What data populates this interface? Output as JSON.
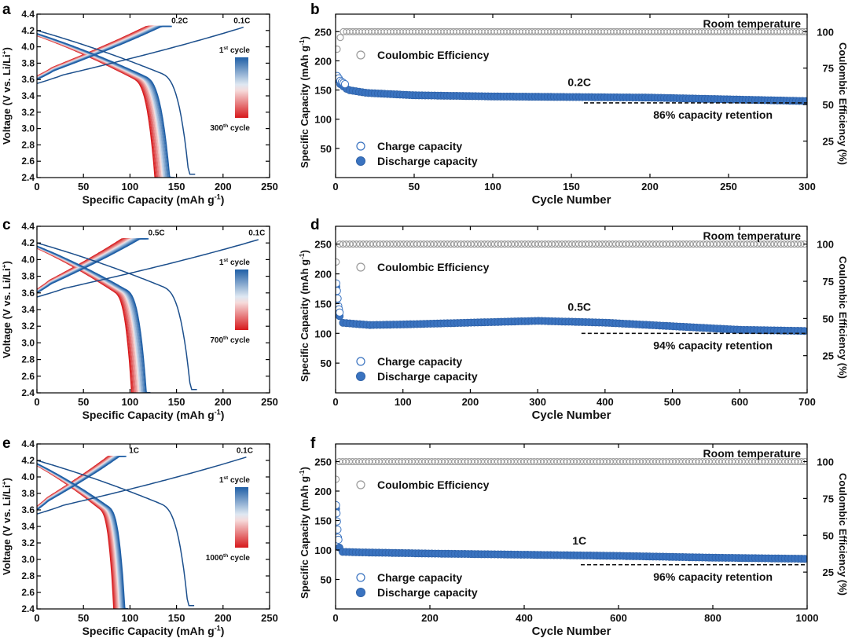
{
  "chart_data": [
    {
      "panel": "a",
      "type": "line",
      "xlabel": "Specific Capacity (mAh g",
      "xlabel_sup": "-1",
      "xlabel_end": ")",
      "ylabel": "Voltage (V vs. Li/Li",
      "ylabel_sup": "+",
      "ylabel_end": ")",
      "xlim": [
        0,
        250
      ],
      "ylim": [
        2.4,
        4.4
      ],
      "xticks": [
        "0",
        "50",
        "100",
        "150",
        "200",
        "250"
      ],
      "yticks": [
        "2.4",
        "2.6",
        "2.8",
        "3.0",
        "3.2",
        "3.4",
        "3.6",
        "3.8",
        "4.0",
        "4.2",
        "4.4"
      ],
      "formation_rate_label": "0.1C",
      "cycling_rate_label": "0.2C",
      "formation_charge_end": 222,
      "formation_discharge_end": 170,
      "first_charge_end": 145,
      "last_charge_end": 135,
      "first_discharge_end": 148,
      "last_discharge_end": 132,
      "legend_top": "1",
      "legend_top_sup": "st",
      "legend_top_end": " cycle",
      "legend_bottom": "300",
      "legend_bottom_sup": "th",
      "legend_bottom_end": " cycle"
    },
    {
      "panel": "b",
      "type": "scatter",
      "xlabel": "Cycle Number",
      "ylabel": "Specific Capacity (mAh g",
      "ylabel_sup": "-1",
      "ylabel_end": ")",
      "y2label": "Coulombic Efficiency (%)",
      "xlim": [
        0,
        300
      ],
      "ylim": [
        0,
        280
      ],
      "y2lim": [
        0,
        112
      ],
      "xticks": [
        "0",
        "50",
        "100",
        "150",
        "200",
        "250",
        "300"
      ],
      "yticks": [
        "50",
        "100",
        "150",
        "200",
        "250"
      ],
      "y2ticks": [
        "25",
        "50",
        "75",
        "100"
      ],
      "xtick_values": [
        0,
        50,
        100,
        150,
        200,
        250,
        300
      ],
      "ytick_values": [
        50,
        100,
        150,
        200,
        250
      ],
      "y2tick_values": [
        25,
        50,
        75,
        100
      ],
      "rate_label": "0.2C",
      "retention_label": "86% capacity retention",
      "temperature_label": "Room temperature",
      "legend": [
        "Coulombic Efficiency",
        "Charge capacity",
        "Discharge capacity"
      ],
      "capacity_profile": [
        [
          1,
          168
        ],
        [
          3,
          160
        ],
        [
          8,
          150
        ],
        [
          20,
          145
        ],
        [
          50,
          141
        ],
        [
          100,
          139
        ],
        [
          150,
          138
        ],
        [
          200,
          137
        ],
        [
          250,
          134
        ],
        [
          300,
          131
        ]
      ],
      "ce_percent": 100,
      "retention_line_x": [
        158,
        300
      ],
      "retention_line_y": 128
    },
    {
      "panel": "c",
      "type": "line",
      "xlabel": "Specific Capacity (mAh g",
      "xlabel_sup": "-1",
      "xlabel_end": ")",
      "ylabel": "Voltage (V vs. Li/Li",
      "ylabel_sup": "+",
      "ylabel_end": ")",
      "xlim": [
        0,
        250
      ],
      "ylim": [
        2.4,
        4.4
      ],
      "xticks": [
        "0",
        "50",
        "100",
        "150",
        "200",
        "250"
      ],
      "yticks": [
        "2.4",
        "2.6",
        "2.8",
        "3.0",
        "3.2",
        "3.4",
        "3.6",
        "3.8",
        "4.0",
        "4.2",
        "4.4"
      ],
      "formation_rate_label": "0.1C",
      "cycling_rate_label": "0.5C",
      "formation_charge_end": 238,
      "formation_discharge_end": 172,
      "first_charge_end": 120,
      "last_charge_end": 105,
      "first_discharge_end": 122,
      "last_discharge_end": 106,
      "legend_top": "1",
      "legend_top_sup": "st",
      "legend_top_end": " cycle",
      "legend_bottom": "700",
      "legend_bottom_sup": "th",
      "legend_bottom_end": " cycle"
    },
    {
      "panel": "d",
      "type": "scatter",
      "xlabel": "Cycle Number",
      "ylabel": "Specific Capacity (mAh g",
      "ylabel_sup": "-1",
      "ylabel_end": ")",
      "y2label": "Coulombic Efficiency (%)",
      "xlim": [
        0,
        700
      ],
      "ylim": [
        0,
        280
      ],
      "y2lim": [
        0,
        112
      ],
      "xticks": [
        "0",
        "100",
        "200",
        "300",
        "400",
        "500",
        "600",
        "700"
      ],
      "yticks": [
        "50",
        "100",
        "150",
        "200",
        "250"
      ],
      "y2ticks": [
        "25",
        "50",
        "75",
        "100"
      ],
      "xtick_values": [
        0,
        100,
        200,
        300,
        400,
        500,
        600,
        700
      ],
      "ytick_values": [
        50,
        100,
        150,
        200,
        250
      ],
      "y2tick_values": [
        25,
        50,
        75,
        100
      ],
      "rate_label": "0.5C",
      "retention_label": "94% capacity retention",
      "temperature_label": "Room temperature",
      "legend": [
        "Coulombic Efficiency",
        "Charge capacity",
        "Discharge capacity"
      ],
      "capacity_profile": [
        [
          1,
          178
        ],
        [
          4,
          140
        ],
        [
          8,
          118
        ],
        [
          50,
          114
        ],
        [
          100,
          115
        ],
        [
          200,
          118
        ],
        [
          300,
          121
        ],
        [
          400,
          118
        ],
        [
          500,
          112
        ],
        [
          600,
          106
        ],
        [
          700,
          104
        ]
      ],
      "ce_percent": 100,
      "retention_line_x": [
        365,
        700
      ],
      "retention_line_y": 100
    },
    {
      "panel": "e",
      "type": "line",
      "xlabel": "Specific Capacity (mAh g",
      "xlabel_sup": "-1",
      "xlabel_end": ")",
      "ylabel": "Voltage (V vs. Li/Li",
      "ylabel_sup": "+",
      "ylabel_end": ")",
      "xlim": [
        0,
        250
      ],
      "ylim": [
        2.4,
        4.4
      ],
      "xticks": [
        "0",
        "50",
        "100",
        "150",
        "200",
        "250"
      ],
      "yticks": [
        "2.4",
        "2.6",
        "2.8",
        "3.0",
        "3.2",
        "3.4",
        "3.6",
        "3.8",
        "4.0",
        "4.2",
        "4.4"
      ],
      "formation_rate_label": "0.1C",
      "cycling_rate_label": "1C",
      "formation_charge_end": 225,
      "formation_discharge_end": 169,
      "first_charge_end": 96,
      "last_charge_end": 88,
      "first_discharge_end": 98,
      "last_discharge_end": 86,
      "legend_top": "1",
      "legend_top_sup": "st",
      "legend_top_end": " cycle",
      "legend_bottom": "1000",
      "legend_bottom_sup": "th",
      "legend_bottom_end": " cycle"
    },
    {
      "panel": "f",
      "type": "scatter",
      "xlabel": "Cycle Number",
      "ylabel": "Specific Capacity (mAh g",
      "ylabel_sup": "-1",
      "ylabel_end": ")",
      "y2label": "Coulombic Efficiency (%)",
      "xlim": [
        0,
        1000
      ],
      "ylim": [
        0,
        280
      ],
      "y2lim": [
        0,
        112
      ],
      "xticks": [
        "0",
        "200",
        "400",
        "600",
        "800",
        "1000"
      ],
      "yticks": [
        "50",
        "100",
        "150",
        "200",
        "250"
      ],
      "y2ticks": [
        "25",
        "50",
        "75",
        "100"
      ],
      "xtick_values": [
        0,
        200,
        400,
        600,
        800,
        1000
      ],
      "ytick_values": [
        50,
        100,
        150,
        200,
        250
      ],
      "y2tick_values": [
        25,
        50,
        75,
        100
      ],
      "rate_label": "1C",
      "retention_label": "96% capacity retention",
      "temperature_label": "Room temperature",
      "legend": [
        "Coulombic Efficiency",
        "Charge capacity",
        "Discharge capacity"
      ],
      "capacity_profile": [
        [
          1,
          170
        ],
        [
          5,
          115
        ],
        [
          10,
          97
        ],
        [
          50,
          96
        ],
        [
          200,
          94
        ],
        [
          400,
          92
        ],
        [
          600,
          90
        ],
        [
          800,
          87
        ],
        [
          1000,
          85
        ]
      ],
      "ce_percent": 100,
      "retention_line_x": [
        520,
        1000
      ],
      "retention_line_y": 75
    }
  ]
}
